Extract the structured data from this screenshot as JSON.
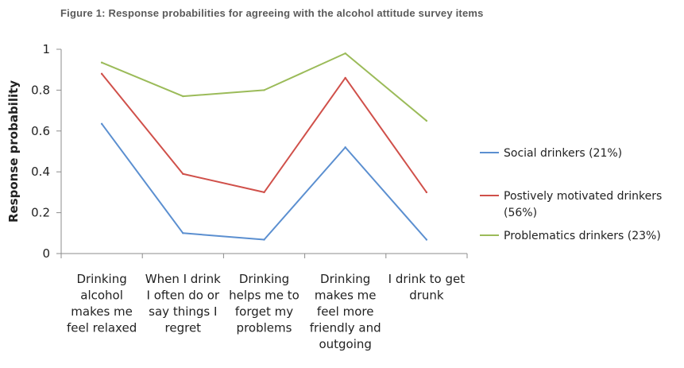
{
  "figure_title": "Figure 1: Response probabilities for agreeing with the alcohol attitude survey items",
  "chart_data": {
    "type": "line",
    "title": "",
    "xlabel": "",
    "ylabel": "Response probability",
    "ylim": [
      0,
      1
    ],
    "yticks": [
      "0",
      "0.2",
      "0.4",
      "0.6",
      "0.8",
      "1"
    ],
    "grid": false,
    "legend_position": "right",
    "categories": [
      [
        "Drinking",
        "alcohol",
        "makes me",
        "feel relaxed"
      ],
      [
        "When I drink",
        "I often do or",
        "say things I",
        "regret"
      ],
      [
        "Drinking",
        "helps me to",
        "forget my",
        "problems"
      ],
      [
        "Drinking",
        "makes me",
        "feel more",
        "friendly and",
        "outgoing"
      ],
      [
        "I drink to get",
        "drunk"
      ]
    ],
    "series": [
      {
        "name": "Social drinkers (21%)",
        "name_lines": [
          "Social drinkers (21%)"
        ],
        "color": "#5b8fd0",
        "values": [
          0.635,
          0.1,
          0.068,
          0.52,
          0.068
        ]
      },
      {
        "name": "Postively motivated drinkers (56%)",
        "name_lines": [
          "Postively motivated drinkers",
          "(56%)"
        ],
        "color": "#d0504a",
        "values": [
          0.88,
          0.39,
          0.3,
          0.86,
          0.3
        ]
      },
      {
        "name": "Problematics drinkers (23%)",
        "name_lines": [
          "Problematics drinkers (23%)"
        ],
        "color": "#9bbb59",
        "values": [
          0.935,
          0.77,
          0.8,
          0.98,
          0.65
        ]
      }
    ]
  }
}
